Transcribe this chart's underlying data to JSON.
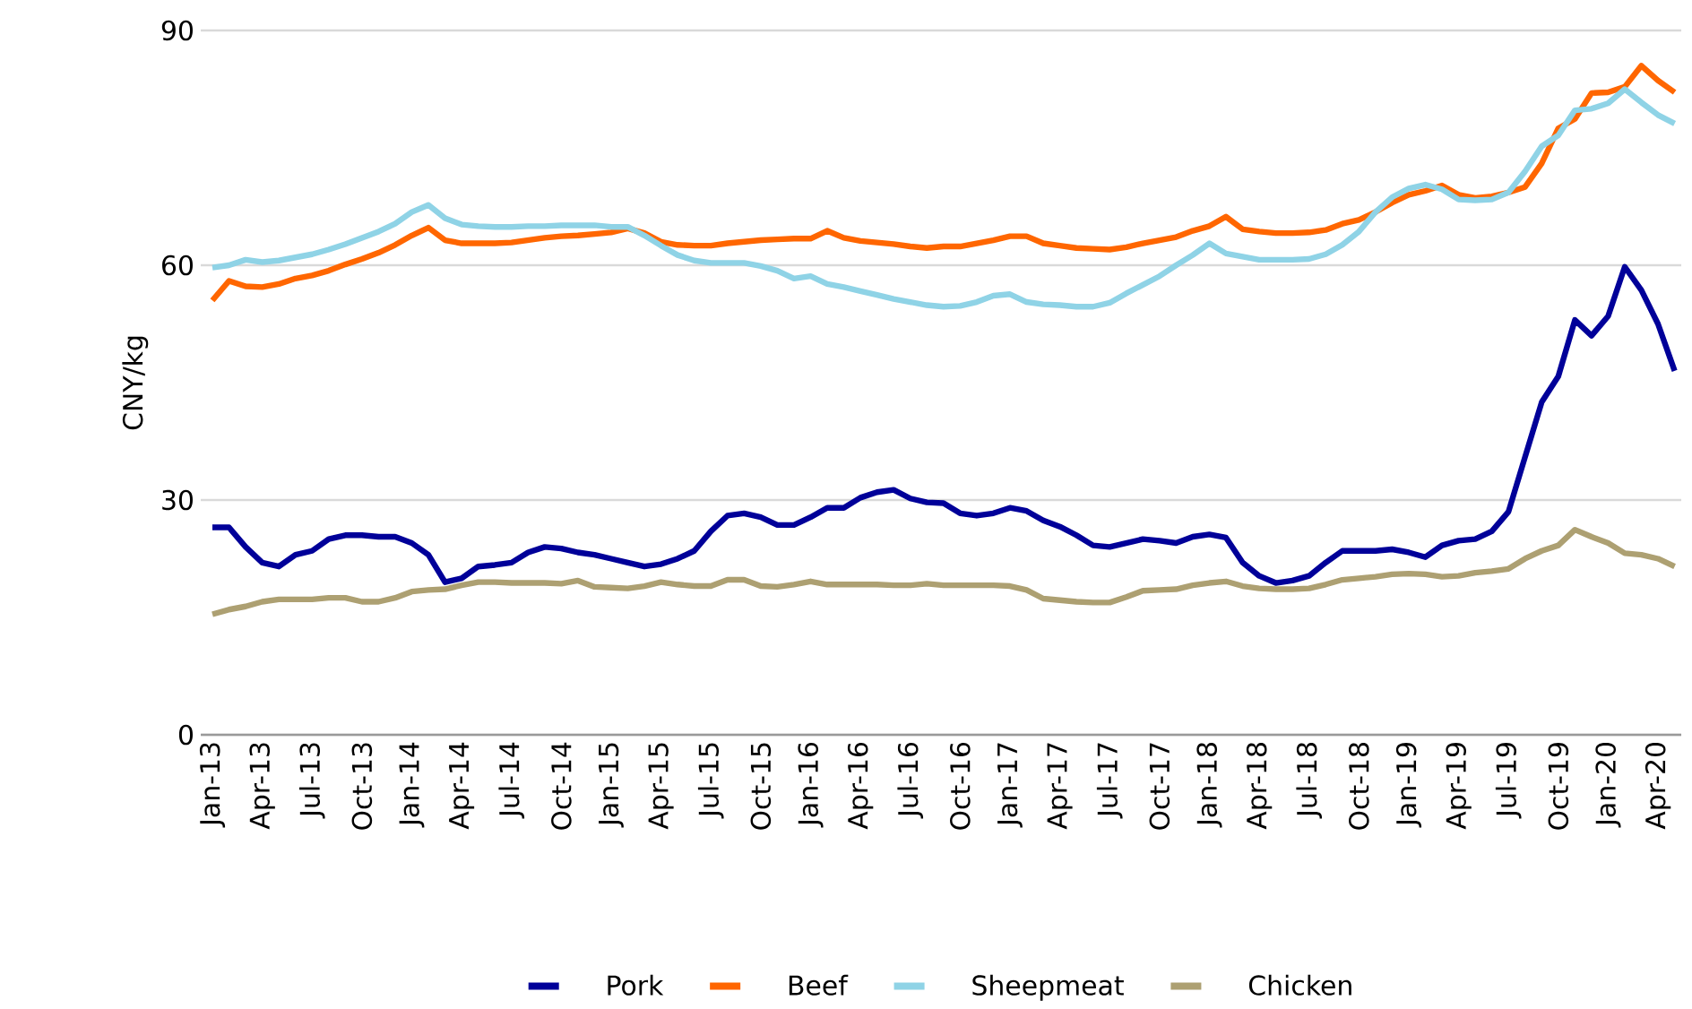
{
  "chart_data": {
    "type": "line",
    "ylabel": "CNY/kg",
    "categories": [
      "Jan-13",
      null,
      null,
      "Apr-13",
      null,
      null,
      "Jul-13",
      null,
      null,
      "Oct-13",
      null,
      null,
      "Jan-14",
      null,
      null,
      "Apr-14",
      null,
      null,
      "Jul-14",
      null,
      null,
      "Oct-14",
      null,
      null,
      "Jan-15",
      null,
      null,
      "Apr-15",
      null,
      null,
      "Jul-15",
      null,
      null,
      "Oct-15",
      null,
      null,
      "Jan-16",
      null,
      null,
      "Apr-16",
      null,
      null,
      "Jul-16",
      null,
      null,
      "Oct-16",
      null,
      null,
      "Jan-17",
      null,
      null,
      "Apr-17",
      null,
      null,
      "Jul-17",
      null,
      null,
      "Oct-17",
      null,
      null,
      "Jan-18",
      null,
      null,
      "Apr-18",
      null,
      null,
      "Jul-18",
      null,
      null,
      "Oct-18",
      null,
      null,
      "Jan-19",
      null,
      null,
      "Apr-19",
      null,
      null,
      "Jul-19",
      null,
      null,
      "Oct-19",
      null,
      null,
      "Jan-20",
      null,
      null,
      "Apr-20",
      null
    ],
    "series": [
      {
        "name": "Pork",
        "color": "#000099",
        "values": [
          26.5,
          26.5,
          24,
          22,
          21.5,
          23,
          23.5,
          25,
          25.5,
          25.5,
          25.3,
          25.3,
          24.5,
          23,
          19.5,
          20,
          21.5,
          21.7,
          22,
          23.3,
          24,
          23.8,
          23.3,
          23,
          22.5,
          22,
          21.5,
          21.8,
          22.5,
          23.5,
          26,
          28,
          28.3,
          27.8,
          26.8,
          26.8,
          27.8,
          29,
          29,
          30.3,
          31,
          31.3,
          30.2,
          29.7,
          29.6,
          28.3,
          28,
          28.3,
          29,
          28.6,
          27.4,
          26.6,
          25.5,
          24.2,
          24,
          24.5,
          25,
          24.8,
          24.5,
          25.3,
          25.6,
          25.2,
          22,
          20.3,
          19.4,
          19.7,
          20.3,
          22,
          23.5,
          23.5,
          23.5,
          23.7,
          23.3,
          22.7,
          24.2,
          24.8,
          25,
          26,
          28.5,
          35.5,
          42.5,
          45.8,
          53,
          51,
          53.5,
          59.8,
          56.8,
          52.5,
          46.5
        ]
      },
      {
        "name": "Beef",
        "color": "#ff6600",
        "values": [
          55.5,
          58,
          57.3,
          57.2,
          57.6,
          58.3,
          58.7,
          59.3,
          60.1,
          60.8,
          61.6,
          62.6,
          63.8,
          64.8,
          63.2,
          62.8,
          62.8,
          62.8,
          62.9,
          63.2,
          63.5,
          63.7,
          63.8,
          64,
          64.2,
          64.7,
          64.1,
          63,
          62.6,
          62.5,
          62.5,
          62.8,
          63,
          63.2,
          63.3,
          63.4,
          63.4,
          64.4,
          63.5,
          63.1,
          62.9,
          62.7,
          62.4,
          62.2,
          62.4,
          62.4,
          62.8,
          63.2,
          63.7,
          63.7,
          62.8,
          62.5,
          62.2,
          62.1,
          62,
          62.3,
          62.8,
          63.2,
          63.6,
          64.4,
          65,
          66.2,
          64.6,
          64.3,
          64.1,
          64.1,
          64.2,
          64.5,
          65.3,
          65.8,
          66.8,
          68,
          69,
          69.5,
          70.2,
          69,
          68.6,
          68.8,
          69.3,
          70,
          73,
          77.5,
          78.7,
          82,
          82.1,
          82.8,
          85.5,
          83.6,
          82.1
        ]
      },
      {
        "name": "Sheepmeat",
        "color": "#8fd3e6",
        "values": [
          59.7,
          60,
          60.7,
          60.4,
          60.6,
          61,
          61.4,
          62,
          62.7,
          63.5,
          64.3,
          65.3,
          66.8,
          67.7,
          66,
          65.2,
          65,
          64.9,
          64.9,
          65,
          65,
          65.1,
          65.1,
          65.1,
          64.9,
          64.9,
          63.8,
          62.5,
          61.3,
          60.6,
          60.3,
          60.3,
          60.3,
          59.9,
          59.3,
          58.3,
          58.6,
          57.6,
          57.2,
          56.7,
          56.2,
          55.7,
          55.3,
          54.9,
          54.7,
          54.8,
          55.3,
          56.1,
          56.3,
          55.3,
          55,
          54.9,
          54.7,
          54.7,
          55.2,
          56.4,
          57.5,
          58.6,
          60,
          61.3,
          62.8,
          61.5,
          61.1,
          60.7,
          60.7,
          60.7,
          60.8,
          61.4,
          62.6,
          64.3,
          66.8,
          68.7,
          69.8,
          70.3,
          69.7,
          68.4,
          68.3,
          68.4,
          69.3,
          72,
          75.2,
          76.6,
          79.8,
          80,
          80.7,
          82.5,
          80.8,
          79.2,
          78.1
        ]
      },
      {
        "name": "Chicken",
        "color": "#ada072",
        "values": [
          15.4,
          16,
          16.4,
          17,
          17.3,
          17.3,
          17.3,
          17.5,
          17.5,
          17,
          17,
          17.5,
          18.3,
          18.5,
          18.6,
          19.1,
          19.5,
          19.5,
          19.4,
          19.4,
          19.4,
          19.3,
          19.7,
          18.9,
          18.8,
          18.7,
          19,
          19.5,
          19.2,
          19,
          19,
          19.8,
          19.8,
          19,
          18.9,
          19.2,
          19.6,
          19.2,
          19.2,
          19.2,
          19.2,
          19.1,
          19.1,
          19.3,
          19.1,
          19.1,
          19.1,
          19.1,
          19,
          18.5,
          17.4,
          17.2,
          17,
          16.9,
          16.9,
          17.6,
          18.4,
          18.5,
          18.6,
          19.1,
          19.4,
          19.6,
          19,
          18.7,
          18.6,
          18.6,
          18.7,
          19.2,
          19.8,
          20,
          20.2,
          20.5,
          20.6,
          20.5,
          20.2,
          20.3,
          20.7,
          20.9,
          21.2,
          22.5,
          23.5,
          24.2,
          26.2,
          25.3,
          24.5,
          23.2,
          23,
          22.5,
          21.5
        ]
      }
    ],
    "ylim": [
      0,
      90
    ],
    "yticks": [
      0,
      30,
      60,
      90
    ],
    "grid": "y",
    "legend": "bottom",
    "marker": "none",
    "line_style": "solid"
  }
}
